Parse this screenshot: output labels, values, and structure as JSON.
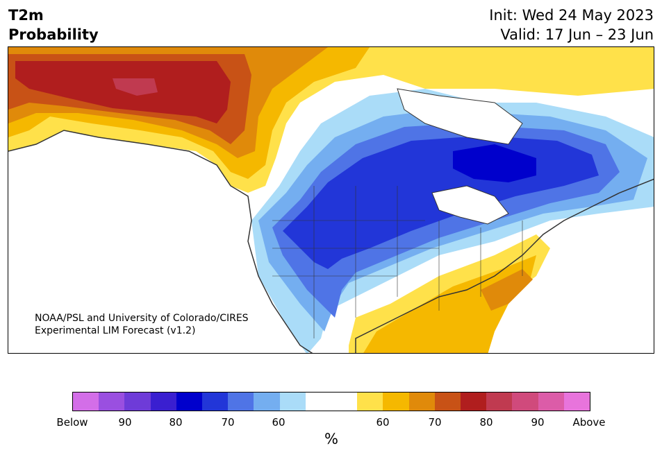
{
  "title": {
    "variable": "T2m",
    "subtitle": "Probability",
    "init": "Init: Wed 24 May 2023",
    "valid": "Valid: 17 Jun – 23 Jun"
  },
  "map": {
    "region": "North America",
    "credit_line1": "NOAA/PSL and University of Colorado/CIRES",
    "credit_line2": "Experimental LIM Forecast (v1.2)"
  },
  "colorbar": {
    "unit_label": "%",
    "colors": [
      "#d36ee8",
      "#9a4fe0",
      "#6e3bd8",
      "#3a1fd0",
      "#0000cc",
      "#2236d8",
      "#4f74e6",
      "#74aef0",
      "#aadcf8",
      "#ffffff",
      "#ffffff",
      "#ffe14a",
      "#f5b800",
      "#e08a0a",
      "#c85216",
      "#b01e1e",
      "#c03a50",
      "#d04a7c",
      "#dc5ca8",
      "#e874dc"
    ],
    "ticks": [
      "Below",
      "90",
      "80",
      "70",
      "60",
      "60",
      "70",
      "80",
      "90",
      "Above"
    ]
  }
}
